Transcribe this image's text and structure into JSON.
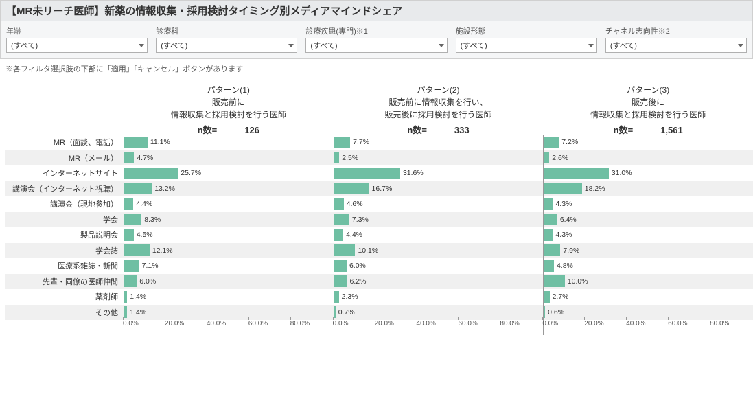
{
  "title": "【MR未リーチ医師】新薬の情報収集・採用検討タイミング別メディアマインドシェア",
  "filters": [
    {
      "label": "年齢",
      "value": "(すべて)"
    },
    {
      "label": "診療科",
      "value": "(すべて)"
    },
    {
      "label": "診療疾患(専門)※1",
      "value": "(すべて)"
    },
    {
      "label": "施設形態",
      "value": "(すべて)"
    },
    {
      "label": "チャネル志向性※2",
      "value": "(すべて)"
    }
  ],
  "filter_note": "※各フィルタ選択肢の下部に「適用」「キャンセル」ボタンがあります",
  "n_label": "n数=",
  "patterns": [
    {
      "title": "パターン(1)",
      "sub1": "販売前に",
      "sub2": "情報収集と採用検討を行う医師",
      "n": "126"
    },
    {
      "title": "パターン(2)",
      "sub1": "販売前に情報収集を行い、",
      "sub2": "販売後に採用検討を行う医師",
      "n": "333"
    },
    {
      "title": "パターン(3)",
      "sub1": "販売後に",
      "sub2": "情報収集と採用検討を行う医師",
      "n": "1,561"
    }
  ],
  "categories": [
    "MR（面談、電話）",
    "MR（メール）",
    "インターネットサイト",
    "講演会（インターネット視聴）",
    "講演会（現地参加）",
    "学会",
    "製品説明会",
    "学会誌",
    "医療系雑誌・新聞",
    "先輩・同僚の医師仲間",
    "薬剤師",
    "その他"
  ],
  "data": [
    [
      11.1,
      4.7,
      25.7,
      13.2,
      4.4,
      8.3,
      4.5,
      12.1,
      7.1,
      6.0,
      1.4,
      1.4
    ],
    [
      7.7,
      2.5,
      31.6,
      16.7,
      4.6,
      7.3,
      4.4,
      10.1,
      6.0,
      6.2,
      2.3,
      0.7
    ],
    [
      7.2,
      2.6,
      31.0,
      18.2,
      4.3,
      6.4,
      4.3,
      7.9,
      4.8,
      10.0,
      2.7,
      0.6
    ]
  ],
  "style": {
    "bar_color": "#6fbfa3",
    "alt_row_bg": "#f0f0f0",
    "xlim": 100,
    "ticks": [
      0,
      20,
      40,
      60,
      80
    ],
    "tick_labels": [
      "0.0%",
      "20.0%",
      "40.0%",
      "60.0%",
      "80.0%"
    ]
  }
}
